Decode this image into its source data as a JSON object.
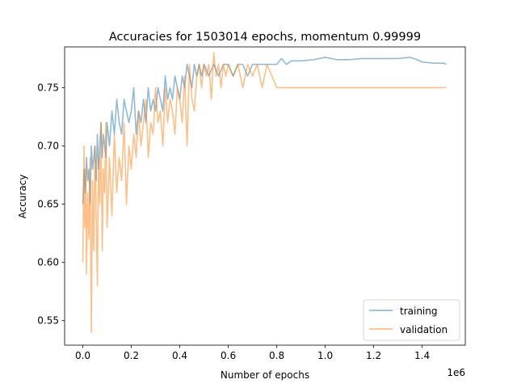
{
  "chart_data": {
    "type": "line",
    "title": "Accuracies for 1503014 epochs, momentum 0.99999",
    "xlabel": "Number of epochs",
    "ylabel": "Accuracy",
    "x_offset_label": "1e6",
    "xlim": [
      -75150,
      1578164
    ],
    "ylim": [
      0.529,
      0.785
    ],
    "x_ticks": [
      0,
      200000,
      400000,
      600000,
      800000,
      1000000,
      1200000,
      1400000
    ],
    "x_tick_labels": [
      "0.0",
      "0.2",
      "0.4",
      "0.6",
      "0.8",
      "1.0",
      "1.2",
      "1.4"
    ],
    "y_ticks": [
      0.55,
      0.6,
      0.65,
      0.7,
      0.75
    ],
    "y_tick_labels": [
      "0.55",
      "0.60",
      "0.65",
      "0.70",
      "0.75"
    ],
    "grid": false,
    "legend": "lower right",
    "series": [
      {
        "name": "training",
        "color": "#1f77b4",
        "alpha": 0.5,
        "x": [
          0,
          5000,
          10000,
          15000,
          20000,
          25000,
          30000,
          35000,
          40000,
          45000,
          50000,
          55000,
          60000,
          65000,
          70000,
          75000,
          80000,
          85000,
          90000,
          95000,
          100000,
          110000,
          120000,
          130000,
          140000,
          150000,
          160000,
          170000,
          180000,
          190000,
          200000,
          210000,
          220000,
          230000,
          240000,
          250000,
          260000,
          270000,
          280000,
          290000,
          300000,
          310000,
          320000,
          330000,
          340000,
          350000,
          360000,
          370000,
          380000,
          390000,
          400000,
          410000,
          420000,
          430000,
          440000,
          450000,
          460000,
          470000,
          480000,
          490000,
          500000,
          520000,
          540000,
          560000,
          580000,
          600000,
          620000,
          640000,
          660000,
          680000,
          700000,
          720000,
          740000,
          760000,
          780000,
          800000,
          820000,
          840000,
          860000,
          880000,
          900000,
          950000,
          1000000,
          1050000,
          1100000,
          1150000,
          1200000,
          1250000,
          1300000,
          1350000,
          1380000,
          1400000,
          1450000,
          1490000,
          1500000
        ],
        "y": [
          0.65,
          0.68,
          0.66,
          0.69,
          0.67,
          0.68,
          0.65,
          0.7,
          0.68,
          0.69,
          0.7,
          0.67,
          0.71,
          0.68,
          0.7,
          0.72,
          0.69,
          0.71,
          0.7,
          0.69,
          0.72,
          0.7,
          0.73,
          0.71,
          0.74,
          0.72,
          0.71,
          0.74,
          0.73,
          0.72,
          0.73,
          0.75,
          0.71,
          0.73,
          0.72,
          0.74,
          0.72,
          0.75,
          0.73,
          0.74,
          0.73,
          0.75,
          0.74,
          0.73,
          0.76,
          0.74,
          0.75,
          0.74,
          0.76,
          0.75,
          0.74,
          0.76,
          0.75,
          0.77,
          0.76,
          0.75,
          0.77,
          0.76,
          0.77,
          0.76,
          0.77,
          0.76,
          0.77,
          0.76,
          0.77,
          0.77,
          0.76,
          0.77,
          0.77,
          0.76,
          0.77,
          0.77,
          0.77,
          0.77,
          0.77,
          0.77,
          0.775,
          0.77,
          0.773,
          0.773,
          0.773,
          0.774,
          0.776,
          0.774,
          0.774,
          0.775,
          0.775,
          0.775,
          0.775,
          0.776,
          0.774,
          0.772,
          0.771,
          0.771,
          0.77
        ]
      },
      {
        "name": "validation",
        "color": "#ff7f0e",
        "alpha": 0.5,
        "x": [
          0,
          5000,
          8000,
          12000,
          15000,
          20000,
          25000,
          30000,
          35000,
          40000,
          45000,
          50000,
          55000,
          60000,
          65000,
          70000,
          75000,
          80000,
          85000,
          90000,
          95000,
          100000,
          110000,
          120000,
          130000,
          140000,
          150000,
          160000,
          170000,
          180000,
          190000,
          200000,
          210000,
          220000,
          230000,
          240000,
          250000,
          260000,
          270000,
          280000,
          290000,
          300000,
          310000,
          320000,
          330000,
          340000,
          350000,
          360000,
          370000,
          380000,
          390000,
          400000,
          410000,
          420000,
          430000,
          440000,
          450000,
          460000,
          470000,
          480000,
          490000,
          500000,
          510000,
          520000,
          530000,
          540000,
          550000,
          560000,
          570000,
          580000,
          590000,
          600000,
          620000,
          640000,
          660000,
          680000,
          700000,
          720000,
          740000,
          760000,
          780000,
          800000,
          850000,
          900000,
          1000000,
          1100000,
          1200000,
          1300000,
          1400000,
          1500000
        ],
        "y": [
          0.6,
          0.7,
          0.63,
          0.68,
          0.59,
          0.66,
          0.62,
          0.69,
          0.54,
          0.67,
          0.61,
          0.7,
          0.64,
          0.58,
          0.69,
          0.65,
          0.72,
          0.61,
          0.68,
          0.66,
          0.72,
          0.63,
          0.69,
          0.64,
          0.71,
          0.66,
          0.69,
          0.67,
          0.72,
          0.65,
          0.7,
          0.68,
          0.71,
          0.69,
          0.73,
          0.7,
          0.72,
          0.74,
          0.69,
          0.72,
          0.71,
          0.75,
          0.72,
          0.73,
          0.7,
          0.75,
          0.72,
          0.74,
          0.73,
          0.71,
          0.75,
          0.74,
          0.72,
          0.76,
          0.7,
          0.77,
          0.74,
          0.73,
          0.76,
          0.77,
          0.75,
          0.77,
          0.76,
          0.77,
          0.74,
          0.78,
          0.76,
          0.77,
          0.75,
          0.77,
          0.76,
          0.77,
          0.76,
          0.77,
          0.75,
          0.77,
          0.76,
          0.77,
          0.75,
          0.77,
          0.76,
          0.75,
          0.75,
          0.75,
          0.75,
          0.75,
          0.75,
          0.75,
          0.75,
          0.75
        ]
      }
    ]
  }
}
